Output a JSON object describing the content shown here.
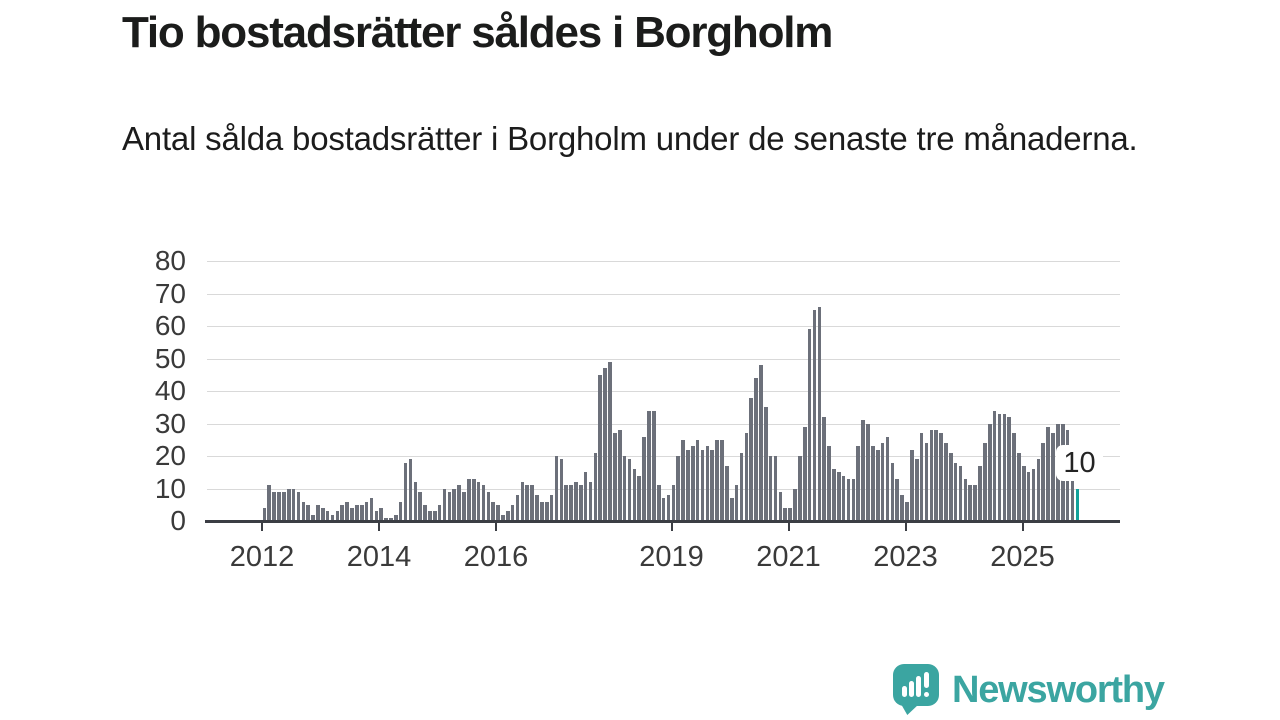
{
  "title": "Tio bostadsrätter såldes i Borgholm",
  "subtitle": "Antal sålda bostadsrätter i Borgholm under de senaste tre månaderna.",
  "chart_data": {
    "type": "bar",
    "title": "Tio bostadsrätter såldes i Borgholm",
    "xlabel": "",
    "ylabel": "",
    "frequency": "monthly",
    "x_start": "2012-01",
    "x_end": "2025-12",
    "ylim": [
      0,
      80
    ],
    "y_ticks": [
      0,
      10,
      20,
      30,
      40,
      50,
      60,
      70,
      80
    ],
    "x_tick_labels": [
      "2012",
      "2014",
      "2016",
      "2019",
      "2021",
      "2023",
      "2025"
    ],
    "grid": "horizontal",
    "legend": "none",
    "bar_color": "#6c707a",
    "highlight_color": "#12a19a",
    "values": [
      4,
      11,
      9,
      9,
      9,
      10,
      10,
      9,
      6,
      5,
      2,
      5,
      4,
      3,
      2,
      3,
      5,
      6,
      4,
      5,
      5,
      6,
      7,
      3,
      4,
      1,
      1,
      2,
      6,
      18,
      19,
      12,
      9,
      5,
      3,
      3,
      5,
      10,
      9,
      10,
      11,
      9,
      13,
      13,
      12,
      11,
      9,
      6,
      5,
      2,
      3,
      5,
      8,
      12,
      11,
      11,
      8,
      6,
      6,
      8,
      20,
      19,
      11,
      11,
      12,
      11,
      15,
      12,
      21,
      45,
      47,
      49,
      27,
      28,
      20,
      19,
      16,
      14,
      26,
      34,
      34,
      11,
      7,
      8,
      11,
      20,
      25,
      22,
      23,
      25,
      22,
      23,
      22,
      25,
      25,
      17,
      7,
      11,
      21,
      27,
      38,
      44,
      48,
      35,
      20,
      20,
      9,
      4,
      4,
      10,
      20,
      29,
      59,
      65,
      66,
      32,
      23,
      16,
      15,
      14,
      13,
      13,
      23,
      31,
      30,
      23,
      22,
      24,
      26,
      18,
      13,
      8,
      6,
      22,
      19,
      27,
      24,
      28,
      28,
      27,
      24,
      21,
      18,
      17,
      13,
      11,
      11,
      17,
      24,
      30,
      34,
      33,
      33,
      32,
      27,
      21,
      17,
      15,
      16,
      19,
      24,
      29,
      27,
      30,
      30,
      28,
      13,
      10
    ],
    "highlight": {
      "index": 167,
      "value": 10,
      "label": "10"
    }
  },
  "branding": {
    "logo_text": "Newsworthy",
    "color": "#3ba5a1"
  },
  "colors": {
    "background": "#ffffff",
    "title_text": "#1b1c1b",
    "axis_text": "#3a3a3a",
    "gridline": "#d9d9d9",
    "axis_line": "#3b3e44",
    "bar": "#6c707a",
    "highlight": "#12a19a"
  }
}
